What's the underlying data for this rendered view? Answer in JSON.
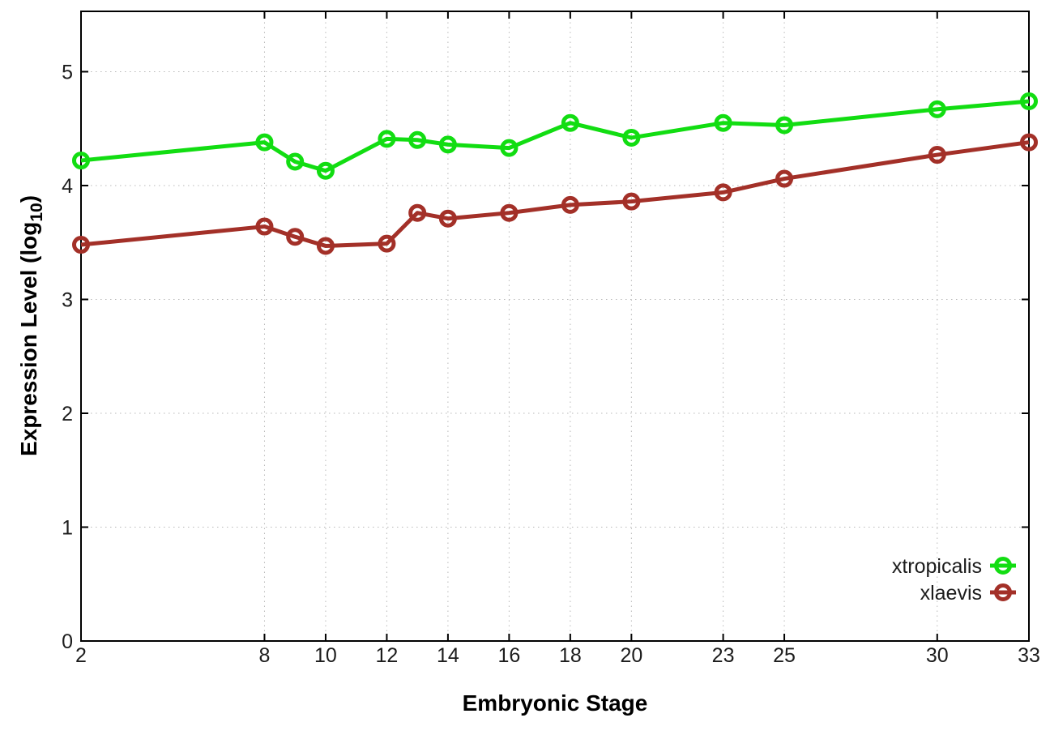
{
  "figure": {
    "background": "#ffffff",
    "border_color": "#000000",
    "grid_color": "#b8b8b8",
    "tick_label_color": "#1c1c1c"
  },
  "chart_data": {
    "type": "line",
    "title": "",
    "xlabel": "Embryonic Stage",
    "ylabel": "Expression Level (log10)",
    "ylabel_base": "Expression Level (log",
    "ylabel_sub": "10",
    "ylabel_end": ")",
    "x": [
      2,
      8,
      9,
      10,
      12,
      13,
      14,
      16,
      18,
      20,
      23,
      25,
      30,
      33
    ],
    "xticks": [
      2,
      8,
      10,
      12,
      14,
      16,
      18,
      20,
      23,
      25,
      30,
      33
    ],
    "yticks": [
      0,
      1,
      2,
      3,
      4,
      5
    ],
    "xlim": [
      2,
      33
    ],
    "ylim": [
      0,
      5.53
    ],
    "grid": true,
    "marker": "open-circle",
    "legend_position": "inside-right",
    "series": [
      {
        "name": "xtropicalis",
        "color": "#12dd12",
        "values": [
          4.22,
          4.38,
          4.21,
          4.13,
          4.41,
          4.4,
          4.36,
          4.33,
          4.55,
          4.42,
          4.55,
          4.53,
          4.67,
          4.74
        ]
      },
      {
        "name": "xlaevis",
        "color": "#a33028",
        "values": [
          3.48,
          3.64,
          3.55,
          3.47,
          3.49,
          3.76,
          3.71,
          3.76,
          3.83,
          3.86,
          3.94,
          4.06,
          4.27,
          4.38
        ]
      }
    ]
  }
}
